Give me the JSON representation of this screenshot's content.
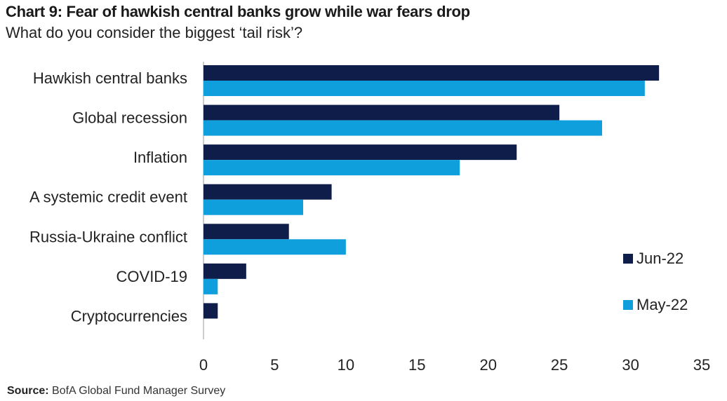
{
  "header": {
    "title": "Chart 9: Fear of hawkish central banks grow while war fears drop",
    "subtitle": "What do you consider the biggest ‘tail risk’?"
  },
  "footer": {
    "source_label": "Source:",
    "source_text": "BofA Global Fund Manager Survey"
  },
  "chart_data": {
    "type": "bar",
    "orientation": "horizontal",
    "categories": [
      "Hawkish central banks",
      "Global recession",
      "Inflation",
      "A systemic credit event",
      "Russia-Ukraine conflict",
      "COVID-19",
      "Cryptocurrencies"
    ],
    "series": [
      {
        "name": "Jun-22",
        "color": "#0f1d4a",
        "values": [
          32,
          25,
          22,
          9,
          6,
          3,
          1
        ]
      },
      {
        "name": "May-22",
        "color": "#0f9fdc",
        "values": [
          31,
          28,
          18,
          7,
          10,
          1,
          0
        ]
      }
    ],
    "xlim": [
      0,
      35
    ],
    "xticks": [
      0,
      5,
      10,
      15,
      20,
      25,
      30,
      35
    ],
    "grid": false,
    "legend_position": "right"
  }
}
